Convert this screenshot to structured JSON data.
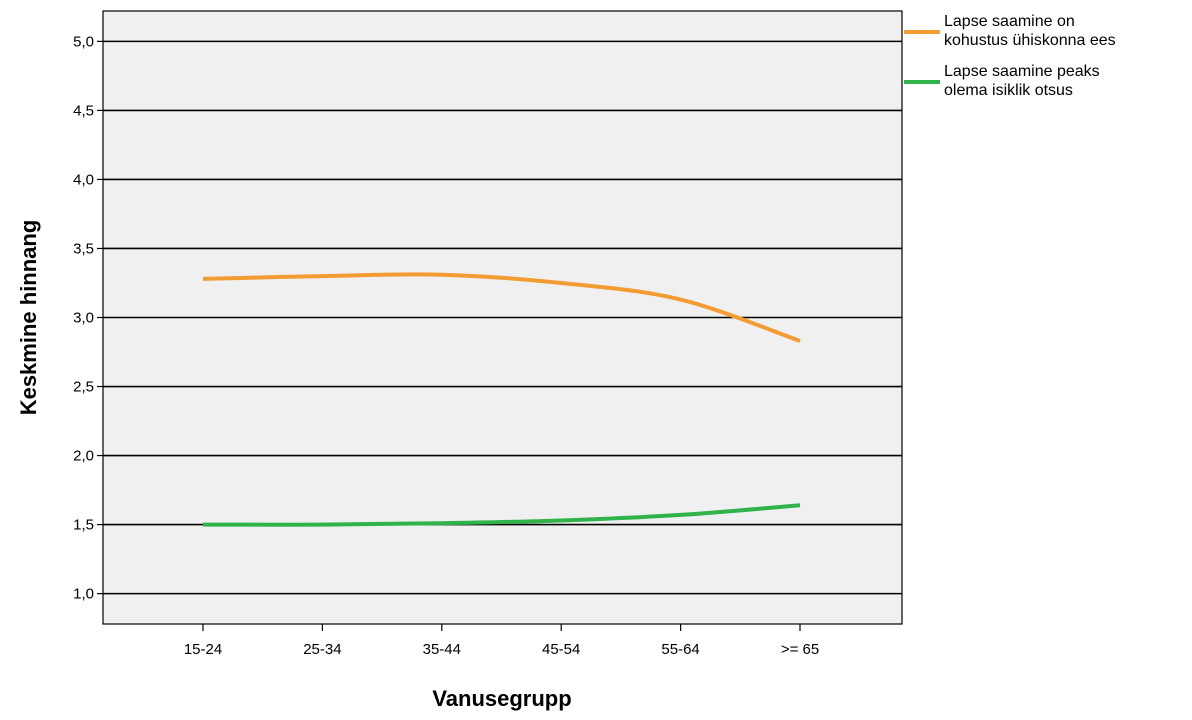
{
  "chart_data": {
    "type": "line",
    "title": "",
    "xlabel": "Vanusegrupp",
    "ylabel": "Keskmine hinnang",
    "categories": [
      "15-24",
      "25-34",
      "35-44",
      "45-54",
      "55-64",
      ">= 65"
    ],
    "ylim": [
      0.78,
      5.22
    ],
    "yticks": [
      "1,0",
      "1,5",
      "2,0",
      "2,5",
      "3,0",
      "3,5",
      "4,0",
      "4,5",
      "5,0"
    ],
    "ytick_values": [
      1.0,
      1.5,
      2.0,
      2.5,
      3.0,
      3.5,
      4.0,
      4.5,
      5.0
    ],
    "grid": true,
    "legend_position": "right-top",
    "background_color": "#f0f0f0",
    "series": [
      {
        "name": "Lapse saamine on kohustus ühiskonna ees",
        "legend_lines": [
          "Lapse saamine on",
          "kohustus ühiskonna ees"
        ],
        "color": "#f39c33",
        "values": [
          3.28,
          3.3,
          3.31,
          3.25,
          3.13,
          2.83
        ]
      },
      {
        "name": "Lapse saamine peaks olema isiklik otsus",
        "legend_lines": [
          "Lapse saamine peaks",
          "olema isiklik otsus"
        ],
        "color": "#2fb34a",
        "values": [
          1.5,
          1.5,
          1.51,
          1.53,
          1.57,
          1.64
        ]
      }
    ]
  }
}
